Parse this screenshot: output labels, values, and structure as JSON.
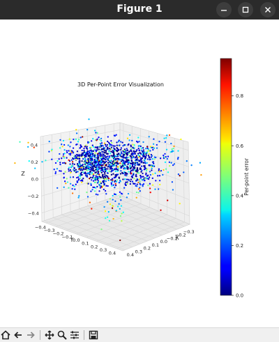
{
  "window": {
    "title": "Figure 1"
  },
  "toolbar": {
    "items": [
      {
        "name": "home-icon"
      },
      {
        "name": "back-arrow-icon"
      },
      {
        "name": "forward-arrow-icon"
      },
      {
        "name": "pan-move-icon"
      },
      {
        "name": "zoom-magnifier-icon"
      },
      {
        "name": "configure-subplots-icon"
      },
      {
        "name": "save-floppy-icon"
      }
    ]
  },
  "chart_data": {
    "type": "scatter",
    "projection": "3d",
    "title": "3D Per-Point Error Visualization",
    "xlabel": "X",
    "ylabel": "Y",
    "zlabel": "Z",
    "x_ticks": [
      "0.4",
      "0.3",
      "0.2",
      "0.1",
      "0.0",
      "−0.1",
      "−0.2",
      "−0.3"
    ],
    "y_ticks": [
      "−0.4",
      "−0.3",
      "−0.2",
      "−0.1",
      "0.0",
      "0.1",
      "0.2",
      "0.3",
      "0.4"
    ],
    "z_ticks": [
      "0.4",
      "0.2",
      "0.0",
      "−0.2",
      "−0.4"
    ],
    "xlim": [
      -0.4,
      0.4
    ],
    "ylim": [
      -0.4,
      0.4
    ],
    "zlim": [
      -0.45,
      0.45
    ],
    "grid": true,
    "colormap": "jet",
    "colorbar": {
      "label": "Per-point error",
      "ticks": [
        "0.0",
        "0.2",
        "0.4",
        "0.6",
        "0.8"
      ],
      "range": [
        0.0,
        0.95
      ]
    }
  }
}
